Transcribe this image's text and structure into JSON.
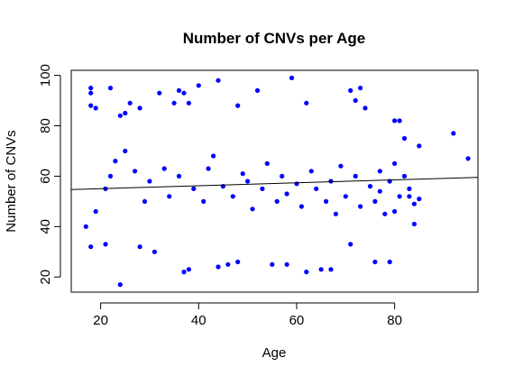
{
  "chart_data": {
    "type": "scatter",
    "title": "Number of CNVs per Age",
    "xlabel": "Age",
    "ylabel": "Number of CNVs",
    "xlim": [
      14,
      97
    ],
    "ylim": [
      14,
      102
    ],
    "x_ticks": [
      20,
      40,
      60,
      80
    ],
    "y_ticks": [
      20,
      40,
      60,
      80,
      100
    ],
    "point_color": "#0000ff",
    "regression_line": {
      "intercept": 53.9,
      "slope": 0.058
    },
    "points_note": "approximate reading of a dense scatter; points sampled deterministically around visible clusters",
    "points": [
      [
        18,
        95
      ],
      [
        18,
        93
      ],
      [
        18,
        88
      ],
      [
        19,
        87
      ],
      [
        22,
        95
      ],
      [
        24,
        84
      ],
      [
        25,
        85
      ],
      [
        26,
        89
      ],
      [
        28,
        87
      ],
      [
        32,
        93
      ],
      [
        35,
        89
      ],
      [
        36,
        94
      ],
      [
        37,
        93
      ],
      [
        38,
        89
      ],
      [
        40,
        96
      ],
      [
        44,
        98
      ],
      [
        48,
        88
      ],
      [
        52,
        94
      ],
      [
        59,
        99
      ],
      [
        62,
        89
      ],
      [
        71,
        94
      ],
      [
        73,
        95
      ],
      [
        72,
        90
      ],
      [
        74,
        87
      ],
      [
        80,
        82
      ],
      [
        81,
        82
      ],
      [
        82,
        75
      ],
      [
        85,
        72
      ],
      [
        92,
        77
      ],
      [
        95,
        67
      ],
      [
        84,
        41
      ],
      [
        83,
        52
      ],
      [
        80,
        46
      ],
      [
        79,
        26
      ],
      [
        76,
        26
      ],
      [
        71,
        33
      ],
      [
        67,
        23
      ],
      [
        65,
        23
      ],
      [
        62,
        22
      ],
      [
        58,
        25
      ],
      [
        55,
        25
      ],
      [
        48,
        26
      ],
      [
        46,
        25
      ],
      [
        44,
        24
      ],
      [
        38,
        23
      ],
      [
        37,
        22
      ],
      [
        31,
        30
      ],
      [
        28,
        32
      ],
      [
        24,
        17
      ],
      [
        21,
        33
      ],
      [
        18,
        32
      ],
      [
        17,
        40
      ],
      [
        19,
        46
      ],
      [
        21,
        55
      ],
      [
        22,
        60
      ],
      [
        23,
        66
      ],
      [
        25,
        70
      ],
      [
        27,
        62
      ],
      [
        29,
        50
      ],
      [
        30,
        58
      ],
      [
        33,
        63
      ],
      [
        34,
        52
      ],
      [
        36,
        60
      ],
      [
        39,
        55
      ],
      [
        41,
        50
      ],
      [
        42,
        63
      ],
      [
        43,
        68
      ],
      [
        45,
        56
      ],
      [
        47,
        52
      ],
      [
        49,
        61
      ],
      [
        50,
        58
      ],
      [
        51,
        47
      ],
      [
        53,
        55
      ],
      [
        54,
        65
      ],
      [
        56,
        50
      ],
      [
        57,
        60
      ],
      [
        58,
        53
      ],
      [
        60,
        57
      ],
      [
        61,
        48
      ],
      [
        63,
        62
      ],
      [
        64,
        55
      ],
      [
        66,
        50
      ],
      [
        67,
        58
      ],
      [
        68,
        45
      ],
      [
        69,
        64
      ],
      [
        70,
        52
      ],
      [
        72,
        60
      ],
      [
        73,
        48
      ],
      [
        75,
        56
      ],
      [
        76,
        50
      ],
      [
        77,
        62
      ],
      [
        78,
        45
      ],
      [
        81,
        52
      ],
      [
        82,
        60
      ],
      [
        83,
        55
      ],
      [
        84,
        49
      ],
      [
        85,
        51
      ],
      [
        80,
        65
      ],
      [
        79,
        58
      ],
      [
        77,
        54
      ]
    ]
  }
}
